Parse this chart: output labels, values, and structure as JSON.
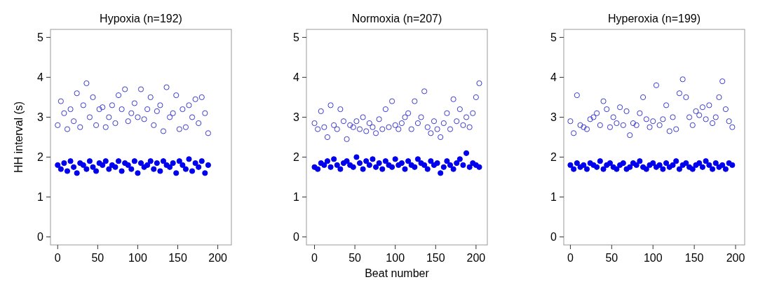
{
  "chart_data": [
    {
      "type": "scatter",
      "title": "Hypoxia (n=192)",
      "ylabel": "HH interval (s)",
      "xlim": [
        -9,
        217
      ],
      "ylim": [
        -0.2,
        5.2
      ],
      "xticks": [
        0,
        50,
        100,
        150,
        200
      ],
      "yticks": [
        0,
        1,
        2,
        3,
        4,
        5
      ],
      "marker": "circle",
      "series": [
        {
          "color": "#3a3ad0",
          "x": [
            0,
            4,
            8,
            12,
            16,
            20,
            24,
            28,
            32,
            36,
            40,
            44,
            48,
            52,
            56,
            60,
            64,
            68,
            72,
            76,
            80,
            84,
            88,
            92,
            96,
            100,
            104,
            108,
            112,
            116,
            120,
            124,
            128,
            132,
            136,
            140,
            144,
            148,
            152,
            156,
            160,
            164,
            168,
            172,
            176,
            180,
            184,
            188
          ],
          "values": [
            2.8,
            3.4,
            3.1,
            2.7,
            3.2,
            2.9,
            3.6,
            2.75,
            3.3,
            3.85,
            3.0,
            3.5,
            2.8,
            3.2,
            3.25,
            2.75,
            3.0,
            3.3,
            2.85,
            3.55,
            3.2,
            3.7,
            2.9,
            3.1,
            3.35,
            3.0,
            3.7,
            2.95,
            3.2,
            3.5,
            2.8,
            3.15,
            3.3,
            2.65,
            3.75,
            3.0,
            3.1,
            3.55,
            2.7,
            3.2,
            2.75,
            3.3,
            3.0,
            3.45,
            2.85,
            3.5,
            3.1,
            2.6
          ]
        },
        {
          "color": "#0000ee",
          "x": [
            0,
            4,
            8,
            12,
            16,
            20,
            24,
            28,
            32,
            36,
            40,
            44,
            48,
            52,
            56,
            60,
            64,
            68,
            72,
            76,
            80,
            84,
            88,
            92,
            96,
            100,
            104,
            108,
            112,
            116,
            120,
            124,
            128,
            132,
            136,
            140,
            144,
            148,
            152,
            156,
            160,
            164,
            168,
            172,
            176,
            180,
            184,
            188
          ],
          "values": [
            1.8,
            1.7,
            1.85,
            1.65,
            1.9,
            1.75,
            1.6,
            1.85,
            1.8,
            1.7,
            1.9,
            1.75,
            1.65,
            1.85,
            1.8,
            1.9,
            1.7,
            1.8,
            1.75,
            1.9,
            1.65,
            1.85,
            1.8,
            1.7,
            1.9,
            1.6,
            1.85,
            1.75,
            1.8,
            1.9,
            1.7,
            1.85,
            1.65,
            1.9,
            1.8,
            1.75,
            1.85,
            1.6,
            1.9,
            1.8,
            1.7,
            1.95,
            1.65,
            1.85,
            1.75,
            1.9,
            1.6,
            1.8
          ]
        }
      ]
    },
    {
      "type": "scatter",
      "title": "Normoxia (n=207)",
      "xlabel": "Beat number",
      "xlim": [
        -10,
        214
      ],
      "ylim": [
        -0.2,
        5.2
      ],
      "xticks": [
        0,
        50,
        100,
        150,
        200
      ],
      "yticks": [
        0,
        1,
        2,
        3,
        4,
        5
      ],
      "marker": "circle",
      "series": [
        {
          "color": "#3a3ad0",
          "x": [
            0,
            4,
            8,
            12,
            16,
            20,
            24,
            28,
            32,
            36,
            40,
            44,
            48,
            52,
            56,
            60,
            64,
            68,
            72,
            76,
            80,
            84,
            88,
            92,
            96,
            100,
            104,
            108,
            112,
            116,
            120,
            124,
            128,
            132,
            136,
            140,
            144,
            148,
            152,
            156,
            160,
            164,
            168,
            172,
            176,
            180,
            184,
            188,
            192,
            196,
            200,
            204
          ],
          "values": [
            2.85,
            2.7,
            3.15,
            2.75,
            2.5,
            3.3,
            2.8,
            2.7,
            3.2,
            2.9,
            2.45,
            2.8,
            2.75,
            2.9,
            2.7,
            3.0,
            2.65,
            2.85,
            2.75,
            2.6,
            2.95,
            2.7,
            3.2,
            2.75,
            3.4,
            2.8,
            2.7,
            2.85,
            3.0,
            3.1,
            2.7,
            3.4,
            2.85,
            3.0,
            3.65,
            2.75,
            2.6,
            2.9,
            2.7,
            2.5,
            2.85,
            3.1,
            2.7,
            3.45,
            2.9,
            3.2,
            2.8,
            3.0,
            2.75,
            3.1,
            3.5,
            3.85
          ]
        },
        {
          "color": "#0000ee",
          "x": [
            0,
            4,
            8,
            12,
            16,
            20,
            24,
            28,
            32,
            36,
            40,
            44,
            48,
            52,
            56,
            60,
            64,
            68,
            72,
            76,
            80,
            84,
            88,
            92,
            96,
            100,
            104,
            108,
            112,
            116,
            120,
            124,
            128,
            132,
            136,
            140,
            144,
            148,
            152,
            156,
            160,
            164,
            168,
            172,
            176,
            180,
            184,
            188,
            192,
            196,
            200,
            204
          ],
          "values": [
            1.75,
            1.7,
            1.85,
            1.8,
            1.9,
            1.75,
            1.95,
            1.8,
            1.7,
            1.85,
            1.9,
            1.8,
            1.75,
            2.0,
            1.85,
            1.7,
            1.9,
            1.8,
            1.95,
            1.75,
            1.85,
            1.7,
            1.9,
            1.8,
            1.75,
            1.95,
            1.8,
            1.85,
            1.7,
            1.9,
            1.8,
            1.75,
            1.95,
            1.85,
            1.8,
            1.7,
            1.9,
            1.8,
            1.85,
            1.6,
            1.75,
            1.9,
            1.8,
            1.7,
            1.85,
            1.95,
            1.8,
            2.1,
            1.75,
            1.85,
            1.8,
            1.75
          ]
        }
      ]
    },
    {
      "type": "scatter",
      "title": "Hyperoxia (n=199)",
      "xlim": [
        -8,
        211
      ],
      "ylim": [
        -0.2,
        5.2
      ],
      "xticks": [
        0,
        50,
        100,
        150,
        200
      ],
      "yticks": [
        0,
        1,
        2,
        3,
        4,
        5
      ],
      "marker": "circle",
      "series": [
        {
          "color": "#3a3ad0",
          "x": [
            0,
            4,
            8,
            12,
            16,
            20,
            24,
            28,
            32,
            36,
            40,
            44,
            48,
            52,
            56,
            60,
            64,
            68,
            72,
            76,
            80,
            84,
            88,
            92,
            96,
            100,
            104,
            108,
            112,
            116,
            120,
            124,
            128,
            132,
            136,
            140,
            144,
            148,
            152,
            156,
            160,
            164,
            168,
            172,
            176,
            180,
            184,
            188,
            192,
            196
          ],
          "values": [
            2.9,
            2.6,
            3.55,
            2.8,
            2.75,
            2.7,
            2.95,
            3.0,
            3.1,
            2.8,
            3.4,
            3.2,
            2.75,
            3.0,
            2.85,
            3.25,
            2.8,
            3.15,
            2.55,
            2.85,
            2.8,
            3.1,
            3.5,
            2.95,
            2.75,
            2.9,
            3.8,
            2.8,
            2.95,
            3.3,
            2.65,
            3.0,
            2.7,
            3.6,
            3.95,
            3.5,
            3.0,
            2.8,
            3.15,
            3.05,
            3.25,
            2.95,
            3.3,
            2.85,
            3.0,
            3.5,
            3.9,
            3.2,
            2.9,
            2.75
          ]
        },
        {
          "color": "#0000ee",
          "x": [
            0,
            4,
            8,
            12,
            16,
            20,
            24,
            28,
            32,
            36,
            40,
            44,
            48,
            52,
            56,
            60,
            64,
            68,
            72,
            76,
            80,
            84,
            88,
            92,
            96,
            100,
            104,
            108,
            112,
            116,
            120,
            124,
            128,
            132,
            136,
            140,
            144,
            148,
            152,
            156,
            160,
            164,
            168,
            172,
            176,
            180,
            184,
            188,
            192,
            196
          ],
          "values": [
            1.8,
            1.7,
            1.85,
            1.75,
            1.8,
            1.7,
            1.85,
            1.8,
            1.75,
            1.9,
            1.7,
            1.8,
            1.85,
            1.75,
            1.7,
            1.8,
            1.85,
            1.7,
            1.75,
            1.85,
            1.8,
            1.9,
            1.75,
            1.7,
            1.8,
            1.85,
            1.75,
            1.8,
            1.7,
            1.85,
            1.75,
            1.8,
            1.9,
            1.7,
            1.8,
            1.85,
            1.75,
            1.7,
            1.8,
            1.85,
            1.75,
            1.9,
            1.8,
            1.7,
            1.85,
            1.75,
            1.8,
            1.7,
            1.85,
            1.8
          ]
        }
      ]
    }
  ]
}
